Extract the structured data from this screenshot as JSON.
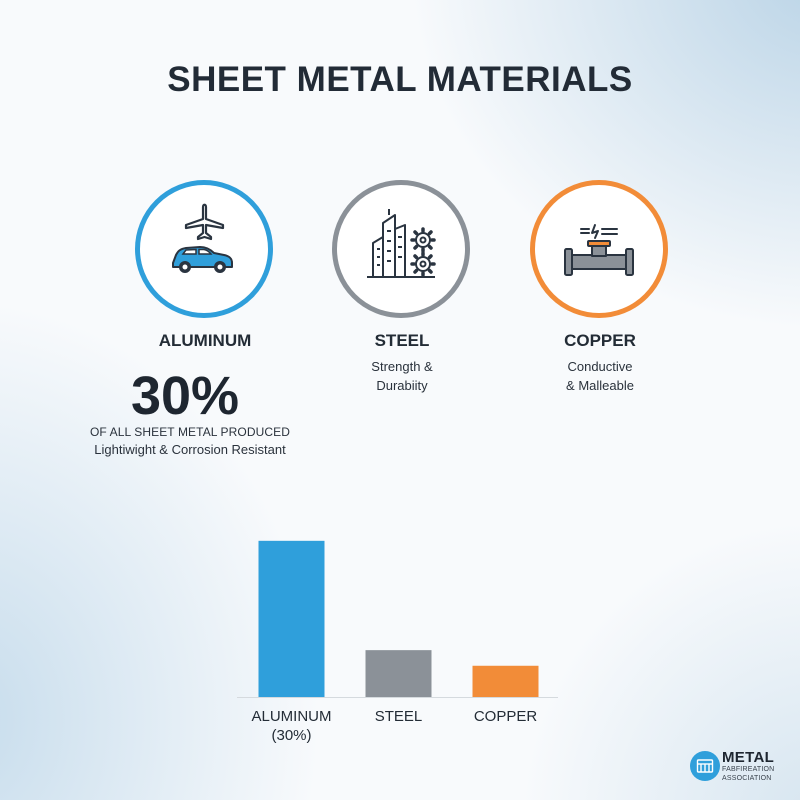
{
  "title": "SHEET METAL MATERIALS",
  "materials": [
    {
      "name": "ALUMINUM",
      "icon": "airplane-car-icon",
      "color": "#2f9fdb"
    },
    {
      "name": "STEEL",
      "icon": "buildings-gears-icon",
      "color": "#8b9198",
      "line1": "Strength &",
      "line2": "Durabiity"
    },
    {
      "name": "COPPER",
      "icon": "pipe-electric-icon",
      "color": "#f28c38",
      "line1": "Conductive",
      "line2": "& Malleable"
    }
  ],
  "stat": {
    "value": "30%",
    "caption": "OF ALL SHEET METAL PRODUCED",
    "description": "Lightiwight & Corrosion Resistant"
  },
  "chart_data": {
    "type": "bar",
    "categories": [
      "ALUMINUM",
      "STEEL",
      "COPPER"
    ],
    "category_labels": [
      [
        "ALUMINUM",
        "(30%)"
      ],
      [
        "STEEL"
      ],
      [
        "COPPER"
      ]
    ],
    "values": [
      30,
      9,
      6
    ],
    "colors": [
      "#2f9fdb",
      "#8b9198",
      "#f28c38"
    ],
    "ylim": [
      0,
      34
    ],
    "grid": false,
    "legend": "none"
  },
  "logo": {
    "line1": "METAL",
    "line2": "FABFIREATION",
    "line3": "ASSOCIATION"
  }
}
